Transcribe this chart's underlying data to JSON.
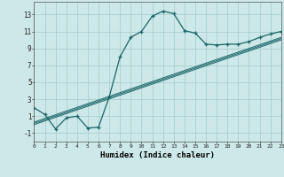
{
  "xlabel": "Humidex (Indice chaleur)",
  "background_color": "#cde8e8",
  "grid_color": "#aacfcf",
  "line_color": "#1a6666",
  "x_values": [
    0,
    1,
    2,
    3,
    4,
    5,
    6,
    7,
    8,
    9,
    10,
    11,
    12,
    13,
    14,
    15,
    16,
    17,
    18,
    19,
    20,
    21,
    22,
    23
  ],
  "y_humidex": [
    2,
    1.2,
    -0.5,
    0.8,
    1.0,
    -0.4,
    -0.3,
    3.3,
    8.0,
    10.3,
    11.0,
    12.8,
    13.4,
    13.1,
    11.1,
    10.8,
    9.5,
    9.4,
    9.5,
    9.5,
    9.8,
    10.3,
    10.7,
    11.0
  ],
  "y_line1": [
    0.0,
    0.435,
    0.87,
    1.304,
    1.739,
    2.174,
    2.609,
    3.043,
    3.478,
    3.913,
    4.348,
    4.783,
    5.217,
    5.652,
    6.087,
    6.522,
    6.957,
    7.391,
    7.826,
    8.261,
    8.696,
    9.13,
    9.565,
    10.0
  ],
  "y_line2": [
    0.15,
    0.585,
    1.02,
    1.454,
    1.889,
    2.324,
    2.759,
    3.193,
    3.628,
    4.063,
    4.498,
    4.933,
    5.367,
    5.802,
    6.237,
    6.672,
    7.107,
    7.541,
    7.976,
    8.411,
    8.846,
    9.28,
    9.715,
    10.15
  ],
  "y_line3": [
    0.3,
    0.735,
    1.17,
    1.604,
    2.039,
    2.474,
    2.909,
    3.343,
    3.778,
    4.213,
    4.648,
    5.083,
    5.517,
    5.952,
    6.387,
    6.822,
    7.257,
    7.691,
    8.126,
    8.561,
    8.996,
    9.43,
    9.865,
    10.3
  ],
  "ylim": [
    -2,
    14.5
  ],
  "xlim": [
    0,
    23
  ],
  "yticks": [
    -1,
    1,
    3,
    5,
    7,
    9,
    11,
    13
  ],
  "xticks": [
    0,
    1,
    2,
    3,
    4,
    5,
    6,
    7,
    8,
    9,
    10,
    11,
    12,
    13,
    14,
    15,
    16,
    17,
    18,
    19,
    20,
    21,
    22,
    23
  ]
}
